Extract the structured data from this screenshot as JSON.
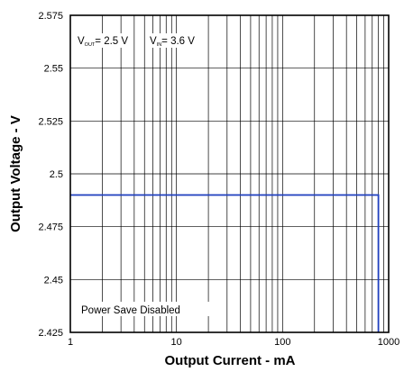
{
  "chart_data": {
    "type": "line",
    "xlabel": "Output Current - mA",
    "ylabel": "Output Voltage - V",
    "x_scale": "log",
    "xlim": [
      1,
      1000
    ],
    "ylim": [
      2.425,
      2.575
    ],
    "grid": true,
    "x_ticks": [
      "1",
      "10",
      "100",
      "1000"
    ],
    "y_ticks": [
      "2.575",
      "2.55",
      "2.525",
      "2.5",
      "2.475",
      "2.45",
      "2.425"
    ],
    "annotations": {
      "vout_main": "V",
      "vout_sub": "OUT",
      "vout_value": "= 2.5 V",
      "vin_main": "V",
      "vin_sub": "IN",
      "vin_value": "= 3.6 V",
      "mode": "Power Save Disabled"
    },
    "series": [
      {
        "color": "#1f3fbf",
        "x": [
          1,
          10,
          100,
          800,
          800
        ],
        "y": [
          2.49,
          2.49,
          2.49,
          2.49,
          2.425
        ]
      }
    ]
  }
}
